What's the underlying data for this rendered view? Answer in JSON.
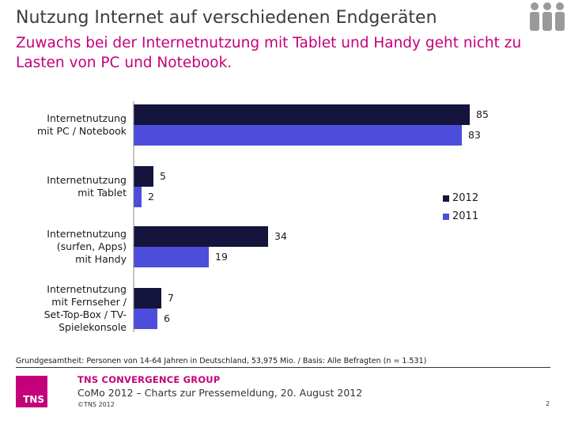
{
  "header": {
    "title": "Nutzung Internet auf verschiedenen Endgeräten",
    "subtitle": "Zuwachs bei der Internetnutzung mit Tablet und Handy geht nicht zu Lasten von PC und Notebook."
  },
  "colors": {
    "accent": "#c4007a",
    "series_2012": "#14143c",
    "series_2011": "#4d4ddc",
    "people_icon": "#9a9a9a"
  },
  "chart_data": {
    "type": "bar",
    "orientation": "horizontal",
    "categories": [
      [
        "Internetnutzung",
        "mit PC / Notebook"
      ],
      [
        "Internetnutzung",
        "mit Tablet"
      ],
      [
        "Internetnutzung",
        "(surfen, Apps)",
        "mit Handy"
      ],
      [
        "Internetnutzung",
        "mit Fernseher /",
        "Set-Top-Box / TV-",
        "Spielekonsole"
      ]
    ],
    "series": [
      {
        "name": "2012",
        "values": [
          85,
          5,
          34,
          7
        ]
      },
      {
        "name": "2011",
        "values": [
          83,
          2,
          19,
          6
        ]
      }
    ],
    "xlim": [
      0,
      100
    ],
    "grid": false,
    "legend": "right"
  },
  "footer": {
    "basis": "Grundgesamtheit: Personen von 14-64 Jahren in Deutschland, 53,975 Mio. / Basis: Alle Befragten (n = 1.531)",
    "company": "TNS CONVERGENCE GROUP",
    "line": "CoMo 2012 – Charts zur Pressemeldung, 20. August 2012",
    "copyright": "©TNS 2012",
    "page": "2",
    "logo_text": "TNS"
  },
  "icons": {
    "people": "people-group-icon"
  }
}
